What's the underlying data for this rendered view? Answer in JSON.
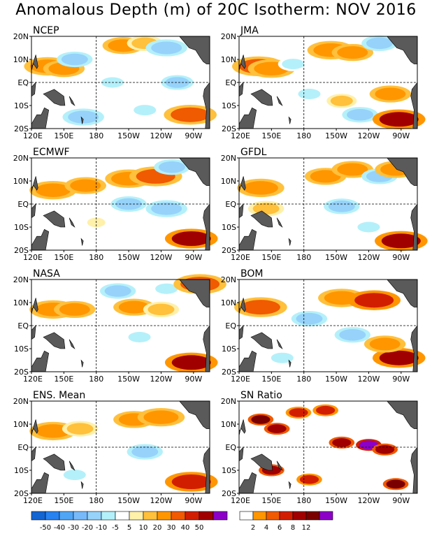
{
  "figure": {
    "title": "Anomalous Depth (m) of 20C Isotherm: NOV 2016"
  },
  "axes": {
    "x_ticks": [
      "120E",
      "150E",
      "180",
      "150W",
      "120W",
      "90W"
    ],
    "y_ticks": [
      "20N",
      "10N",
      "EQ",
      "10S",
      "20S"
    ]
  },
  "chart_data": [
    {
      "type": "heatmap",
      "title": "NCEP",
      "field": "anomaly",
      "features": [
        {
          "lon": 135,
          "lat": 7,
          "value": 25
        },
        {
          "lon": 150,
          "lat": 6,
          "value": 20
        },
        {
          "lon": 160,
          "lat": 10,
          "value": -15
        },
        {
          "lon": 205,
          "lat": 16,
          "value": 20
        },
        {
          "lon": 225,
          "lat": 17,
          "value": 15
        },
        {
          "lon": 245,
          "lat": 15,
          "value": -20
        },
        {
          "lon": 195,
          "lat": 0,
          "value": -10
        },
        {
          "lon": 225,
          "lat": -12,
          "value": -10
        },
        {
          "lon": 168,
          "lat": -15,
          "value": -20
        },
        {
          "lon": 267,
          "lat": -14,
          "value": 30
        },
        {
          "lon": 255,
          "lat": 0,
          "value": -12
        }
      ]
    },
    {
      "type": "heatmap",
      "title": "JMA",
      "field": "anomaly",
      "features": [
        {
          "lon": 138,
          "lat": 7,
          "value": 30
        },
        {
          "lon": 150,
          "lat": 6,
          "value": 25
        },
        {
          "lon": 170,
          "lat": 8,
          "value": -10
        },
        {
          "lon": 205,
          "lat": 14,
          "value": 25
        },
        {
          "lon": 225,
          "lat": 13,
          "value": 20
        },
        {
          "lon": 250,
          "lat": 17,
          "value": -15
        },
        {
          "lon": 185,
          "lat": -5,
          "value": -10
        },
        {
          "lon": 215,
          "lat": -8,
          "value": 10
        },
        {
          "lon": 232,
          "lat": -14,
          "value": -15
        },
        {
          "lon": 268,
          "lat": -16,
          "value": 50
        },
        {
          "lon": 260,
          "lat": -5,
          "value": 20
        }
      ]
    },
    {
      "type": "heatmap",
      "title": "ECMWF",
      "field": "anomaly",
      "features": [
        {
          "lon": 140,
          "lat": 6,
          "value": 25
        },
        {
          "lon": 170,
          "lat": 8,
          "value": 20
        },
        {
          "lon": 210,
          "lat": 11,
          "value": 25
        },
        {
          "lon": 235,
          "lat": 12,
          "value": 30
        },
        {
          "lon": 250,
          "lat": 16,
          "value": -15
        },
        {
          "lon": 210,
          "lat": 0,
          "value": -15
        },
        {
          "lon": 245,
          "lat": -2,
          "value": -20
        },
        {
          "lon": 268,
          "lat": -15,
          "value": 50
        },
        {
          "lon": 180,
          "lat": -8,
          "value": 5
        }
      ]
    },
    {
      "type": "heatmap",
      "title": "GFDL",
      "field": "anomaly",
      "features": [
        {
          "lon": 140,
          "lat": 7,
          "value": 25
        },
        {
          "lon": 200,
          "lat": 12,
          "value": 20
        },
        {
          "lon": 225,
          "lat": 15,
          "value": 20
        },
        {
          "lon": 250,
          "lat": 12,
          "value": -15
        },
        {
          "lon": 145,
          "lat": -2,
          "value": 15
        },
        {
          "lon": 215,
          "lat": -1,
          "value": -15
        },
        {
          "lon": 240,
          "lat": -10,
          "value": -10
        },
        {
          "lon": 270,
          "lat": -16,
          "value": 50
        },
        {
          "lon": 265,
          "lat": 15,
          "value": 20
        }
      ]
    },
    {
      "type": "heatmap",
      "title": "NASA",
      "field": "anomaly",
      "features": [
        {
          "lon": 140,
          "lat": 7,
          "value": 25
        },
        {
          "lon": 160,
          "lat": 7,
          "value": 20
        },
        {
          "lon": 215,
          "lat": 8,
          "value": 20
        },
        {
          "lon": 240,
          "lat": 7,
          "value": 15
        },
        {
          "lon": 200,
          "lat": 15,
          "value": -15
        },
        {
          "lon": 245,
          "lat": 16,
          "value": -10
        },
        {
          "lon": 220,
          "lat": -5,
          "value": -10
        },
        {
          "lon": 268,
          "lat": -16,
          "value": 50
        },
        {
          "lon": 276,
          "lat": 18,
          "value": 30
        }
      ]
    },
    {
      "type": "heatmap",
      "title": "BOM",
      "field": "anomaly",
      "features": [
        {
          "lon": 140,
          "lat": 8,
          "value": 30
        },
        {
          "lon": 215,
          "lat": 12,
          "value": 25
        },
        {
          "lon": 245,
          "lat": 11,
          "value": 40
        },
        {
          "lon": 185,
          "lat": 3,
          "value": -15
        },
        {
          "lon": 225,
          "lat": -4,
          "value": -15
        },
        {
          "lon": 268,
          "lat": -14,
          "value": 50
        },
        {
          "lon": 255,
          "lat": -8,
          "value": 20
        },
        {
          "lon": 160,
          "lat": -14,
          "value": -10
        }
      ]
    },
    {
      "type": "heatmap",
      "title": "ENS. Mean",
      "field": "anomaly",
      "features": [
        {
          "lon": 140,
          "lat": 7,
          "value": 25
        },
        {
          "lon": 165,
          "lat": 8,
          "value": 15
        },
        {
          "lon": 215,
          "lat": 12,
          "value": 20
        },
        {
          "lon": 240,
          "lat": 13,
          "value": 25
        },
        {
          "lon": 225,
          "lat": -2,
          "value": -15
        },
        {
          "lon": 268,
          "lat": -15,
          "value": 40
        },
        {
          "lon": 160,
          "lat": -12,
          "value": -10
        }
      ]
    },
    {
      "type": "heatmap",
      "title": "SN Ratio",
      "field": "snr",
      "features": [
        {
          "lon": 140,
          "lat": 12,
          "value": 10
        },
        {
          "lon": 155,
          "lat": 8,
          "value": 8
        },
        {
          "lon": 175,
          "lat": 15,
          "value": 6
        },
        {
          "lon": 215,
          "lat": 2,
          "value": 8
        },
        {
          "lon": 240,
          "lat": 1,
          "value": 12
        },
        {
          "lon": 255,
          "lat": -1,
          "value": 8
        },
        {
          "lon": 200,
          "lat": 16,
          "value": 6
        },
        {
          "lon": 150,
          "lat": -10,
          "value": 8
        },
        {
          "lon": 185,
          "lat": -14,
          "value": 6
        },
        {
          "lon": 265,
          "lat": -16,
          "value": 10
        }
      ]
    }
  ],
  "legends": {
    "anomaly": {
      "labels": [
        "-50",
        "-40",
        "-30",
        "-20",
        "-10",
        "-5",
        "5",
        "10",
        "20",
        "30",
        "40",
        "50"
      ],
      "colors": [
        "#1464d2",
        "#2882f0",
        "#50a5f5",
        "#78b9fa",
        "#96d2fa",
        "#b4f0fa",
        "#ffffff",
        "#fff0aa",
        "#ffc03c",
        "#ff9600",
        "#f05a00",
        "#d21e00",
        "#a00000",
        "#8c00c8"
      ]
    },
    "snr": {
      "labels": [
        "2",
        "4",
        "6",
        "8",
        "12"
      ],
      "colors": [
        "#ffffff",
        "#ff9600",
        "#f05a00",
        "#d21e00",
        "#a00000",
        "#7a0000",
        "#8c00c8"
      ]
    }
  },
  "colors": {
    "land": "#5a5a5a",
    "frame": "#000000"
  }
}
